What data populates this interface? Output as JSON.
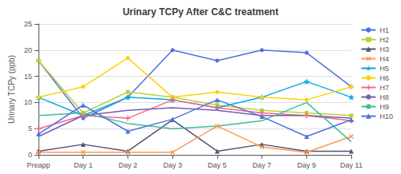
{
  "chart_data": {
    "type": "line",
    "title": "Urinary TCPy After C&C treatment",
    "ylabel": "Urinary TCPy (ppb)",
    "categories": [
      "Preapp",
      "Day 1",
      "Day 2",
      "Day 3",
      "Day 5",
      "Day 7",
      "Day 9",
      "Day 11"
    ],
    "series": [
      {
        "name": "H1",
        "marker": "circle",
        "values": [
          18,
          7,
          11,
          20,
          18,
          20,
          19.5,
          13
        ]
      },
      {
        "name": "H2",
        "marker": "square",
        "values": [
          18,
          8,
          12,
          11,
          9.5,
          8.5,
          8,
          7.5
        ]
      },
      {
        "name": "H3",
        "marker": "triangle",
        "values": [
          0.7,
          2,
          0.7,
          6.7,
          0.7,
          2,
          0.7,
          0.7
        ]
      },
      {
        "name": "H4",
        "marker": "x",
        "values": [
          0.5,
          0.5,
          0.5,
          0.5,
          5.5,
          1.5,
          0.5,
          3.5
        ]
      },
      {
        "name": "H5",
        "marker": "star",
        "values": [
          11,
          7.5,
          11,
          10.5,
          9,
          11,
          14,
          11
        ]
      },
      {
        "name": "H6",
        "marker": "circle",
        "values": [
          11,
          13,
          18.5,
          11,
          12,
          11,
          10.5,
          13
        ]
      },
      {
        "name": "H7",
        "marker": "plus",
        "values": [
          5,
          7.5,
          7,
          10.5,
          9,
          8,
          7.5,
          6.5
        ]
      },
      {
        "name": "H8",
        "marker": "none",
        "values": [
          3.5,
          7.5,
          8.5,
          9,
          8.5,
          7.5,
          7.5,
          7
        ]
      },
      {
        "name": "H9",
        "marker": "none",
        "values": [
          7.5,
          8,
          6,
          5,
          5.5,
          6.5,
          10,
          2.5
        ]
      },
      {
        "name": "H10",
        "marker": "triangle",
        "values": [
          4,
          9.5,
          4.5,
          6.8,
          10.5,
          7.3,
          3.5,
          6.7
        ]
      }
    ],
    "ylim": [
      0,
      25
    ],
    "yticks": [
      0,
      5,
      10,
      15,
      20,
      25
    ],
    "grid": true,
    "legend": "right"
  }
}
